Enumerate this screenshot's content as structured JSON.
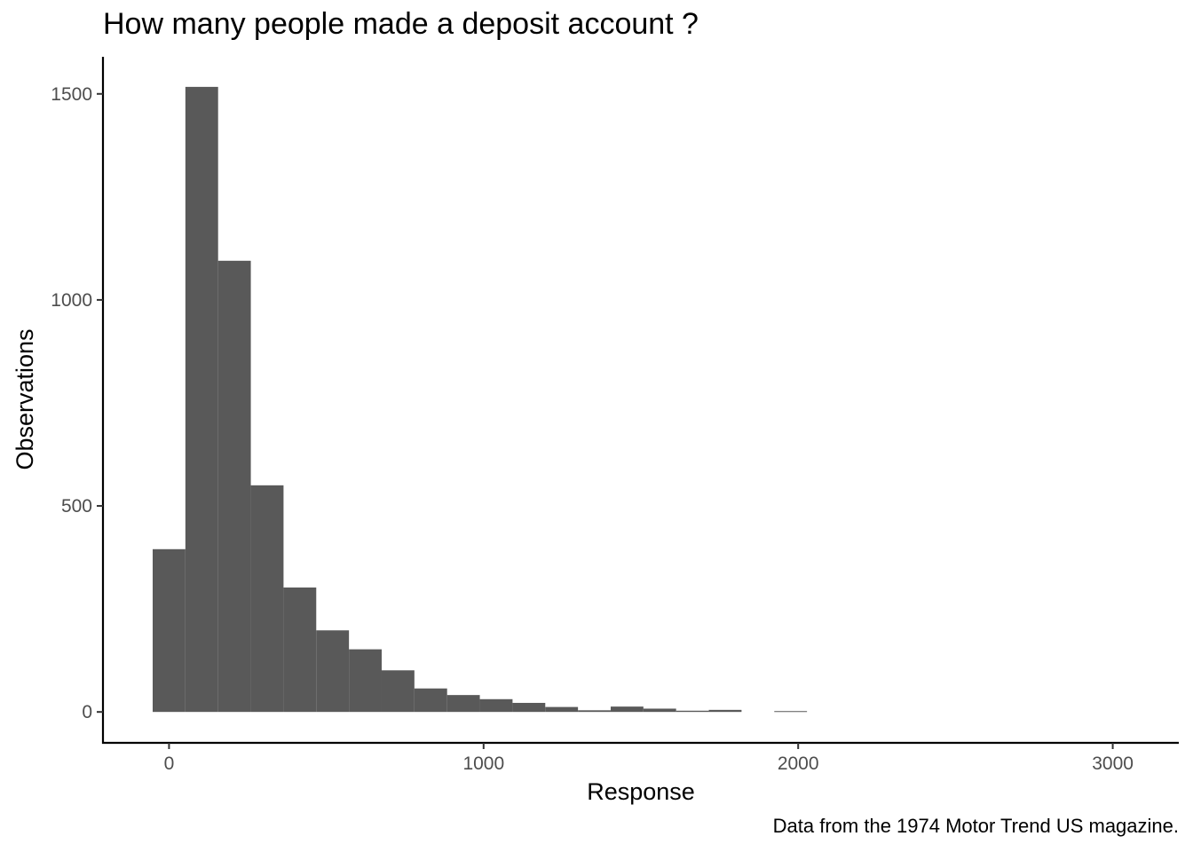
{
  "title": "How many people made a deposit account ?",
  "caption": "Data from the 1974 Motor Trend US magazine.",
  "chart_data": {
    "type": "bar",
    "subtype": "histogram",
    "xlabel": "Response",
    "ylabel": "Observations",
    "xlim": [
      -210,
      3210
    ],
    "ylim": [
      -75,
      1590
    ],
    "x_ticks": [
      0,
      1000,
      2000,
      3000
    ],
    "y_ticks": [
      0,
      500,
      1000,
      1500
    ],
    "bin_width": 104,
    "bin_centers": [
      0,
      104,
      208,
      312,
      416,
      520,
      624,
      728,
      832,
      936,
      1040,
      1144,
      1248,
      1352,
      1456,
      1560,
      1664,
      1768,
      1872,
      1976
    ],
    "counts": [
      395,
      1517,
      1095,
      550,
      302,
      198,
      152,
      101,
      57,
      41,
      31,
      22,
      12,
      4,
      13,
      8,
      3,
      5,
      0,
      2
    ],
    "bar_color": "#595959",
    "grid": false
  }
}
